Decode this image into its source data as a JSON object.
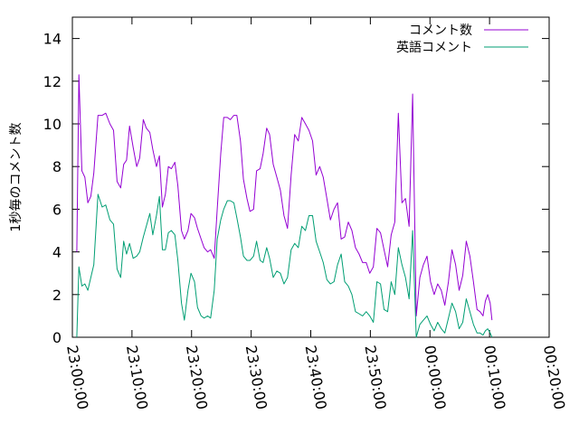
{
  "chart_data": {
    "type": "line",
    "title": "",
    "xlabel": "",
    "ylabel": "1秒毎のコメント数",
    "x_ticks": [
      "23:00:00",
      "23:10:00",
      "23:20:00",
      "23:30:00",
      "23:40:00",
      "23:50:00",
      "00:00:00",
      "00:10:00",
      "00:20:00"
    ],
    "y_ticks": [
      0,
      2,
      4,
      6,
      8,
      10,
      12,
      14
    ],
    "ylim": [
      0,
      15
    ],
    "xlim_minutes": [
      0,
      80
    ],
    "x_unit": "minutes after 23:00:00",
    "grid": false,
    "legend_position": "top-right",
    "series": [
      {
        "name": "コメント数",
        "color": "#9400d3",
        "x": [
          0.75,
          1.1,
          1.6,
          2.1,
          2.6,
          3.1,
          3.6,
          4.3,
          5,
          5.6,
          6.3,
          6.9,
          7.5,
          8.1,
          8.6,
          9.1,
          9.6,
          10.2,
          10.8,
          11.3,
          11.9,
          12.4,
          13,
          13.5,
          14.1,
          14.6,
          15.1,
          15.6,
          16.1,
          16.6,
          17.2,
          17.7,
          18.3,
          18.8,
          19.4,
          19.9,
          20.5,
          21,
          21.6,
          22.1,
          22.7,
          23.2,
          23.8,
          24.3,
          24.9,
          25.4,
          26,
          26.5,
          27.1,
          27.6,
          28.2,
          28.7,
          29.3,
          29.8,
          30.4,
          30.9,
          31.5,
          32,
          32.6,
          33.1,
          33.7,
          34.3,
          34.9,
          35.5,
          36.1,
          36.7,
          37.3,
          37.9,
          38.5,
          39.1,
          39.7,
          40.3,
          40.9,
          41.5,
          42.1,
          42.7,
          43.3,
          43.9,
          44.5,
          45.1,
          45.7,
          46.3,
          46.9,
          47.5,
          48.1,
          48.7,
          49.3,
          49.9,
          50.5,
          51.1,
          51.7,
          52.3,
          52.9,
          53.5,
          54.1,
          54.7,
          55.3,
          55.9,
          56.5,
          57.1,
          57.7,
          58.3,
          58.9,
          59.5,
          60.1,
          60.7,
          61.3,
          61.9,
          62.5,
          63.1,
          63.7,
          64.3,
          64.9,
          65.5,
          66.1,
          66.7,
          67.3,
          67.9,
          68.4,
          68.9,
          69.3,
          69.7,
          70.1,
          70.4
        ],
        "values": [
          4.0,
          12.3,
          7.8,
          7.5,
          6.3,
          6.6,
          7.7,
          10.4,
          10.4,
          10.5,
          10.0,
          9.7,
          7.3,
          7.0,
          8.1,
          8.3,
          9.9,
          8.9,
          8.0,
          8.4,
          10.2,
          9.8,
          9.6,
          8.8,
          8.0,
          8.5,
          6.1,
          6.7,
          8.0,
          7.9,
          8.2,
          7.1,
          5.0,
          4.6,
          5.0,
          5.8,
          5.6,
          5.1,
          4.6,
          4.2,
          4.0,
          4.1,
          3.7,
          6.0,
          8.6,
          10.3,
          10.3,
          10.2,
          10.4,
          10.4,
          9.2,
          7.4,
          6.5,
          5.9,
          6.0,
          7.8,
          7.9,
          8.6,
          9.8,
          9.5,
          8.1,
          7.5,
          6.9,
          5.7,
          5.1,
          7.6,
          9.5,
          9.2,
          10.3,
          10.0,
          9.7,
          9.2,
          7.6,
          8.0,
          7.5,
          6.5,
          5.5,
          6.0,
          6.3,
          4.6,
          4.7,
          5.4,
          5.0,
          4.2,
          3.9,
          3.5,
          3.5,
          3.0,
          3.3,
          5.1,
          4.9,
          4.1,
          3.3,
          4.8,
          5.4,
          10.5,
          6.3,
          6.5,
          5.2,
          11.4,
          1.0,
          2.8,
          3.4,
          3.8,
          2.6,
          2.0,
          2.5,
          2.2,
          1.5,
          2.6,
          4.1,
          3.4,
          2.2,
          2.9,
          4.5,
          3.8,
          2.6,
          1.3,
          1.2,
          1.0,
          1.7,
          2.0,
          1.6,
          0.8
        ]
      },
      {
        "name": "英語コメント",
        "color": "#009e73",
        "x": [
          0.75,
          1.1,
          1.6,
          2.1,
          2.6,
          3.1,
          3.6,
          4.3,
          5,
          5.6,
          6.3,
          6.9,
          7.5,
          8.1,
          8.6,
          9.1,
          9.6,
          10.2,
          10.8,
          11.3,
          11.9,
          12.4,
          13,
          13.5,
          14.1,
          14.6,
          15.1,
          15.6,
          16.1,
          16.6,
          17.2,
          17.7,
          18.3,
          18.8,
          19.4,
          19.9,
          20.5,
          21,
          21.6,
          22.1,
          22.7,
          23.2,
          23.8,
          24.3,
          24.9,
          25.4,
          26,
          26.5,
          27.1,
          27.6,
          28.2,
          28.7,
          29.3,
          29.8,
          30.4,
          30.9,
          31.5,
          32,
          32.6,
          33.1,
          33.7,
          34.3,
          34.9,
          35.5,
          36.1,
          36.7,
          37.3,
          37.9,
          38.5,
          39.1,
          39.7,
          40.3,
          40.9,
          41.5,
          42.1,
          42.7,
          43.3,
          43.9,
          44.5,
          45.1,
          45.7,
          46.3,
          46.9,
          47.5,
          48.1,
          48.7,
          49.3,
          49.9,
          50.5,
          51.1,
          51.7,
          52.3,
          52.9,
          53.5,
          54.1,
          54.7,
          55.3,
          55.9,
          56.5,
          57.1,
          57.7,
          58.3,
          58.9,
          59.5,
          60.1,
          60.7,
          61.3,
          61.9,
          62.5,
          63.1,
          63.7,
          64.3,
          64.9,
          65.5,
          66.1,
          66.7,
          67.3,
          67.9,
          68.4,
          68.9,
          69.3,
          69.7,
          70.1,
          70.4
        ],
        "values": [
          0.0,
          3.3,
          2.4,
          2.5,
          2.2,
          2.8,
          3.4,
          6.7,
          6.1,
          6.2,
          5.5,
          5.3,
          3.2,
          2.8,
          4.5,
          3.9,
          4.4,
          3.7,
          3.8,
          4.0,
          4.7,
          5.2,
          5.8,
          4.8,
          5.7,
          6.6,
          4.1,
          4.1,
          4.9,
          5.0,
          4.8,
          3.6,
          1.6,
          0.8,
          2.2,
          3.0,
          2.6,
          1.4,
          1.0,
          0.9,
          1.0,
          0.9,
          2.2,
          4.6,
          5.5,
          6.0,
          6.4,
          6.4,
          6.3,
          5.6,
          4.7,
          3.8,
          3.6,
          3.6,
          3.8,
          4.5,
          3.6,
          3.5,
          4.2,
          3.7,
          2.8,
          3.1,
          3.0,
          2.5,
          2.8,
          4.1,
          4.4,
          4.2,
          5.2,
          5.0,
          5.7,
          5.7,
          4.5,
          4.0,
          3.5,
          2.7,
          2.5,
          2.6,
          3.4,
          3.9,
          2.6,
          2.4,
          2.0,
          1.2,
          1.1,
          1.0,
          1.2,
          1.0,
          0.7,
          2.6,
          2.5,
          1.3,
          1.2,
          2.6,
          2.0,
          4.2,
          3.4,
          2.8,
          1.8,
          5.0,
          0.0,
          0.6,
          0.8,
          1.0,
          0.6,
          0.3,
          0.7,
          0.4,
          0.2,
          0.9,
          1.6,
          1.2,
          0.4,
          0.7,
          1.8,
          1.2,
          0.6,
          0.2,
          0.2,
          0.1,
          0.3,
          0.4,
          0.2,
          0.0
        ]
      }
    ]
  }
}
